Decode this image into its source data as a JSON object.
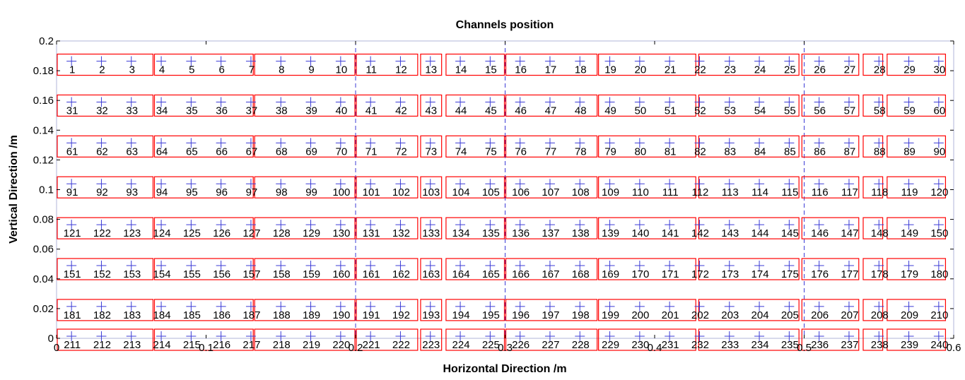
{
  "chart_data": {
    "type": "scatter",
    "title": "Channels position",
    "xlabel": "Horizontal Direction  /m",
    "ylabel": "Vertical Direction  /m",
    "xlim": [
      0,
      0.6
    ],
    "ylim": [
      0,
      0.2
    ],
    "xticks": [
      0,
      0.1,
      0.2,
      0.3,
      0.4,
      0.5,
      0.6
    ],
    "xtick_labels": [
      "0",
      "0.1",
      "0.2",
      "0.3",
      "0.4",
      "0.5",
      "0.6"
    ],
    "yticks": [
      0,
      0.02,
      0.04,
      0.06,
      0.08,
      0.1,
      0.12,
      0.14,
      0.16,
      0.18,
      0.2
    ],
    "ytick_labels": [
      "0",
      "0.02",
      "0.04",
      "0.06",
      "0.08",
      "0.1",
      "0.12",
      "0.14",
      "0.16",
      "0.18",
      "0.2"
    ],
    "grid": false,
    "marker": "+",
    "marker_color": "#3b3bd6",
    "box_color": "#ff0000",
    "divider_color": "#3b3bd6",
    "divider_style": "dashed",
    "dividers_x": [
      0.2,
      0.3,
      0.5
    ],
    "row_y": [
      0.185,
      0.1575,
      0.13,
      0.1025,
      0.075,
      0.0475,
      0.02,
      0.0
    ],
    "columns_x": [
      0.01,
      0.03,
      0.05,
      0.07,
      0.09,
      0.11,
      0.13,
      0.15,
      0.17,
      0.19,
      0.21,
      0.23,
      0.25,
      0.27,
      0.29,
      0.31,
      0.33,
      0.35,
      0.37,
      0.39,
      0.41,
      0.43,
      0.45,
      0.47,
      0.49,
      0.51,
      0.53,
      0.55,
      0.57,
      0.59
    ],
    "channels_per_row": 30,
    "channel_start": 1,
    "groups": [
      {
        "x": [
          0.0,
          0.065
        ],
        "cols": [
          1,
          2,
          3
        ]
      },
      {
        "x": [
          0.065,
          0.132
        ],
        "cols": [
          4,
          5,
          6,
          7
        ]
      },
      {
        "x": [
          0.132,
          0.2
        ],
        "cols": [
          8,
          9,
          10
        ]
      },
      {
        "x": [
          0.2,
          0.242
        ],
        "cols": [
          11,
          12
        ]
      },
      {
        "x": [
          0.243,
          0.258
        ],
        "cols": [
          13
        ]
      },
      {
        "x": [
          0.26,
          0.3
        ],
        "cols": [
          14,
          15
        ]
      },
      {
        "x": [
          0.3,
          0.362
        ],
        "cols": [
          16,
          17,
          18
        ]
      },
      {
        "x": [
          0.362,
          0.428
        ],
        "cols": [
          19,
          20,
          21
        ]
      },
      {
        "x": [
          0.429,
          0.497
        ],
        "cols": [
          22,
          23,
          24,
          25
        ]
      },
      {
        "x": [
          0.498,
          0.537
        ],
        "cols": [
          26,
          27
        ]
      },
      {
        "x": [
          0.539,
          0.553
        ],
        "cols": [
          28
        ]
      },
      {
        "x": [
          0.555,
          0.595
        ],
        "cols": [
          29,
          30
        ]
      }
    ]
  }
}
